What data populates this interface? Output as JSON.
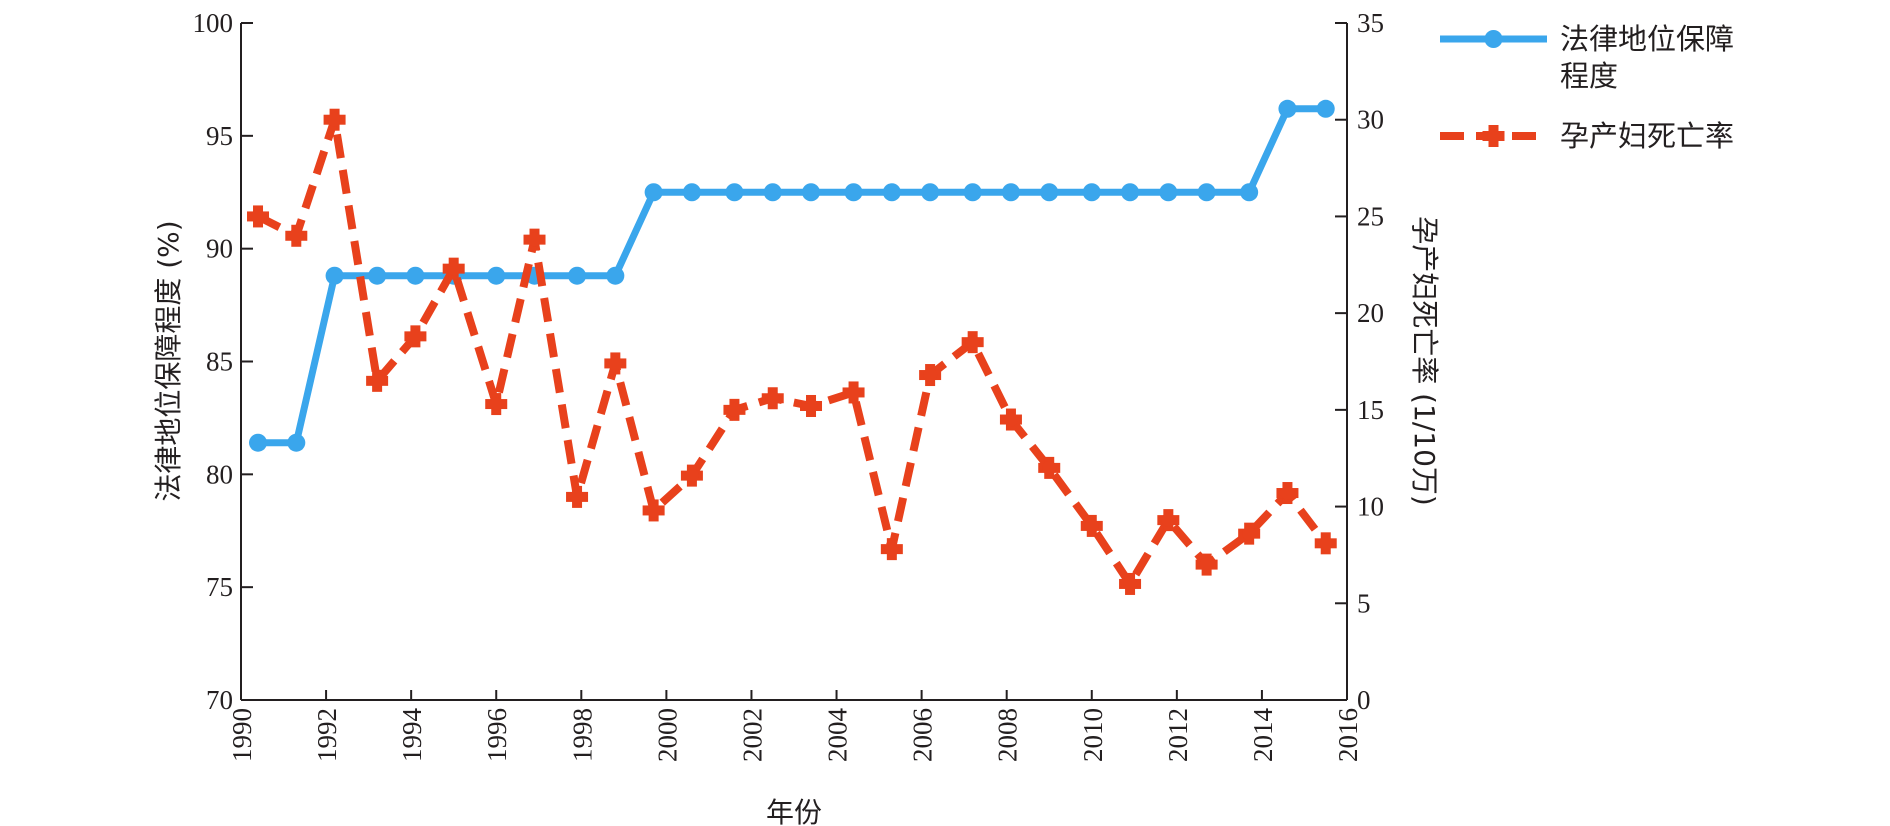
{
  "chart_data": {
    "type": "line",
    "xlabel": "年份",
    "ylabel_left": "法律地位保障程度 (%)",
    "ylabel_right": "孕产妇死亡率 (1/10万)",
    "xlim": [
      1990,
      2016
    ],
    "ylim_left": [
      70,
      100
    ],
    "ylim_right": [
      0,
      35
    ],
    "xticks": [
      1990,
      1992,
      1994,
      1996,
      1998,
      2000,
      2002,
      2004,
      2006,
      2008,
      2010,
      2012,
      2014,
      2016
    ],
    "yticks_left": [
      70,
      75,
      80,
      85,
      90,
      95,
      100
    ],
    "yticks_right": [
      0,
      5,
      10,
      15,
      20,
      25,
      30,
      35
    ],
    "grid": false,
    "legend_position": "top-right outside",
    "series": [
      {
        "name": "法律地位保障\n程度",
        "axis": "left",
        "color": "#3aa6ec",
        "style": "solid",
        "marker": "circle",
        "x": [
          1990.4,
          1991.3,
          1992.2,
          1993.2,
          1994.1,
          1995.0,
          1996.0,
          1996.9,
          1997.9,
          1998.8,
          1999.7,
          2000.6,
          2001.6,
          2002.5,
          2003.4,
          2004.4,
          2005.3,
          2006.2,
          2007.2,
          2008.1,
          2009.0,
          2010.0,
          2010.9,
          2011.8,
          2012.7,
          2013.7,
          2014.6,
          2015.5
        ],
        "values": [
          81.4,
          81.4,
          88.8,
          88.8,
          88.8,
          88.8,
          88.8,
          88.8,
          88.8,
          88.8,
          92.5,
          92.5,
          92.5,
          92.5,
          92.5,
          92.5,
          92.5,
          92.5,
          92.5,
          92.5,
          92.5,
          92.5,
          92.5,
          92.5,
          92.5,
          92.5,
          96.2,
          96.2
        ]
      },
      {
        "name": "孕产妇死亡率",
        "axis": "right",
        "color": "#e8411c",
        "style": "dashed",
        "marker": "plus",
        "x": [
          1990.4,
          1991.3,
          1992.2,
          1993.2,
          1994.1,
          1995.0,
          1996.0,
          1996.9,
          1997.9,
          1998.8,
          1999.7,
          2000.6,
          2001.6,
          2002.5,
          2003.4,
          2004.4,
          2005.3,
          2006.2,
          2007.2,
          2008.1,
          2009.0,
          2010.0,
          2010.9,
          2011.8,
          2012.7,
          2013.7,
          2014.6,
          2015.5
        ],
        "values": [
          25.0,
          24.0,
          30.0,
          16.5,
          18.8,
          22.3,
          15.3,
          23.8,
          10.5,
          17.4,
          9.8,
          11.6,
          15.0,
          15.6,
          15.2,
          15.9,
          7.8,
          16.8,
          18.5,
          14.5,
          12.0,
          9.0,
          6.0,
          9.3,
          7.0,
          8.6,
          10.7,
          8.1
        ]
      }
    ]
  }
}
